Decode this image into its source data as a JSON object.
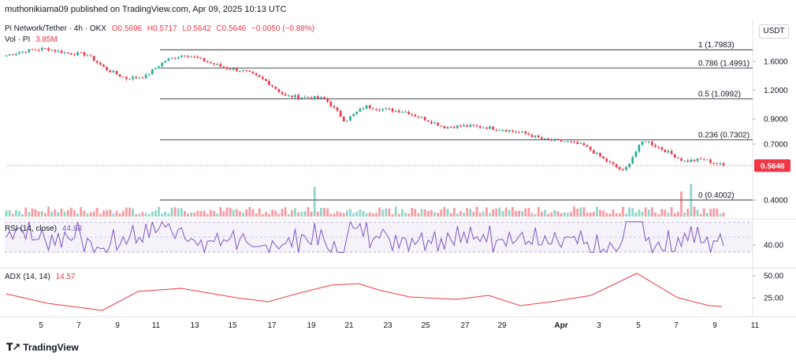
{
  "header": {
    "publisher": "muthonikiama09 published on TradingView.com, Apr 09, 2025 10:13 UTC"
  },
  "legend": {
    "symbol": "Pi Network/Tether · 4h · OKX",
    "open": "O0.5696",
    "high": "H0.5717",
    "low": "L0.5642",
    "close": "C0.5646",
    "change": "−0.0050 (−0.88%)",
    "volume_label": "Vol · PI",
    "volume_value": "3.85M"
  },
  "price_axis": {
    "unit": "USDT",
    "ticks": [
      "1.6000",
      "1.2000",
      "0.9000",
      "0.7000",
      "0.4000"
    ],
    "current_price": "0.5646"
  },
  "fib_levels": [
    {
      "label": "1 (1.7983)",
      "value": 1.7983
    },
    {
      "label": "0.786 (1.4991)",
      "value": 1.4991
    },
    {
      "label": "0.5 (1.0992)",
      "value": 1.0992
    },
    {
      "label": "0.236 (0.7302)",
      "value": 0.7302
    },
    {
      "label": "0 (0.4002)",
      "value": 0.4002
    }
  ],
  "rsi": {
    "label": "RSI (14, close)",
    "value": "44.88",
    "axis_tick": "40.00",
    "value_color": "#7e57c2"
  },
  "adx": {
    "label": "ADX (14, 14)",
    "value": "14.57",
    "axis_ticks": [
      "50.00",
      "25.00"
    ],
    "value_color": "#f23645"
  },
  "time_axis": [
    "5",
    "7",
    "9",
    "11",
    "13",
    "15",
    "17",
    "19",
    "21",
    "23",
    "25",
    "27",
    "29",
    "Apr",
    "3",
    "5",
    "7",
    "9",
    "11"
  ],
  "footer": {
    "brand": "TradingView"
  },
  "colors": {
    "up": "#22ab94",
    "down": "#f23645",
    "rsi_line": "#7e57c2",
    "adx_line": "#f23645"
  },
  "chart_data": {
    "type": "candlestick",
    "symbol": "Pi Network/Tether",
    "interval": "4h",
    "exchange": "OKX",
    "y_scale": "log",
    "price_ticks": [
      1.6,
      1.2,
      0.9,
      0.7,
      0.4
    ],
    "close_trajectory": [
      {
        "x": "4",
        "y": 1.7
      },
      {
        "x": "5",
        "y": 1.78
      },
      {
        "x": "6",
        "y": 1.82
      },
      {
        "x": "7",
        "y": 1.74
      },
      {
        "x": "8",
        "y": 1.72
      },
      {
        "x": "9",
        "y": 1.48
      },
      {
        "x": "10",
        "y": 1.35
      },
      {
        "x": "11",
        "y": 1.38
      },
      {
        "x": "12",
        "y": 1.62
      },
      {
        "x": "13",
        "y": 1.72
      },
      {
        "x": "14",
        "y": 1.6
      },
      {
        "x": "15",
        "y": 1.5
      },
      {
        "x": "16",
        "y": 1.45
      },
      {
        "x": "17",
        "y": 1.32
      },
      {
        "x": "18",
        "y": 1.13
      },
      {
        "x": "19",
        "y": 1.12
      },
      {
        "x": "20",
        "y": 1.1
      },
      {
        "x": "21",
        "y": 0.88
      },
      {
        "x": "22",
        "y": 1.02
      },
      {
        "x": "23",
        "y": 0.99
      },
      {
        "x": "24",
        "y": 0.97
      },
      {
        "x": "25",
        "y": 0.9
      },
      {
        "x": "26",
        "y": 0.83
      },
      {
        "x": "27",
        "y": 0.84
      },
      {
        "x": "28",
        "y": 0.83
      },
      {
        "x": "29",
        "y": 0.81
      },
      {
        "x": "30",
        "y": 0.78
      },
      {
        "x": "31",
        "y": 0.73
      },
      {
        "x": "Apr 1",
        "y": 0.72
      },
      {
        "x": "2",
        "y": 0.69
      },
      {
        "x": "3",
        "y": 0.6
      },
      {
        "x": "4",
        "y": 0.53
      },
      {
        "x": "5",
        "y": 0.73
      },
      {
        "x": "6",
        "y": 0.66
      },
      {
        "x": "7",
        "y": 0.59
      },
      {
        "x": "8",
        "y": 0.6
      },
      {
        "x": "9",
        "y": 0.5646
      }
    ],
    "rsi": {
      "name": "RSI (14, close)",
      "last": 44.88
    },
    "adx": {
      "name": "ADX (14, 14)",
      "last": 14.57
    }
  }
}
